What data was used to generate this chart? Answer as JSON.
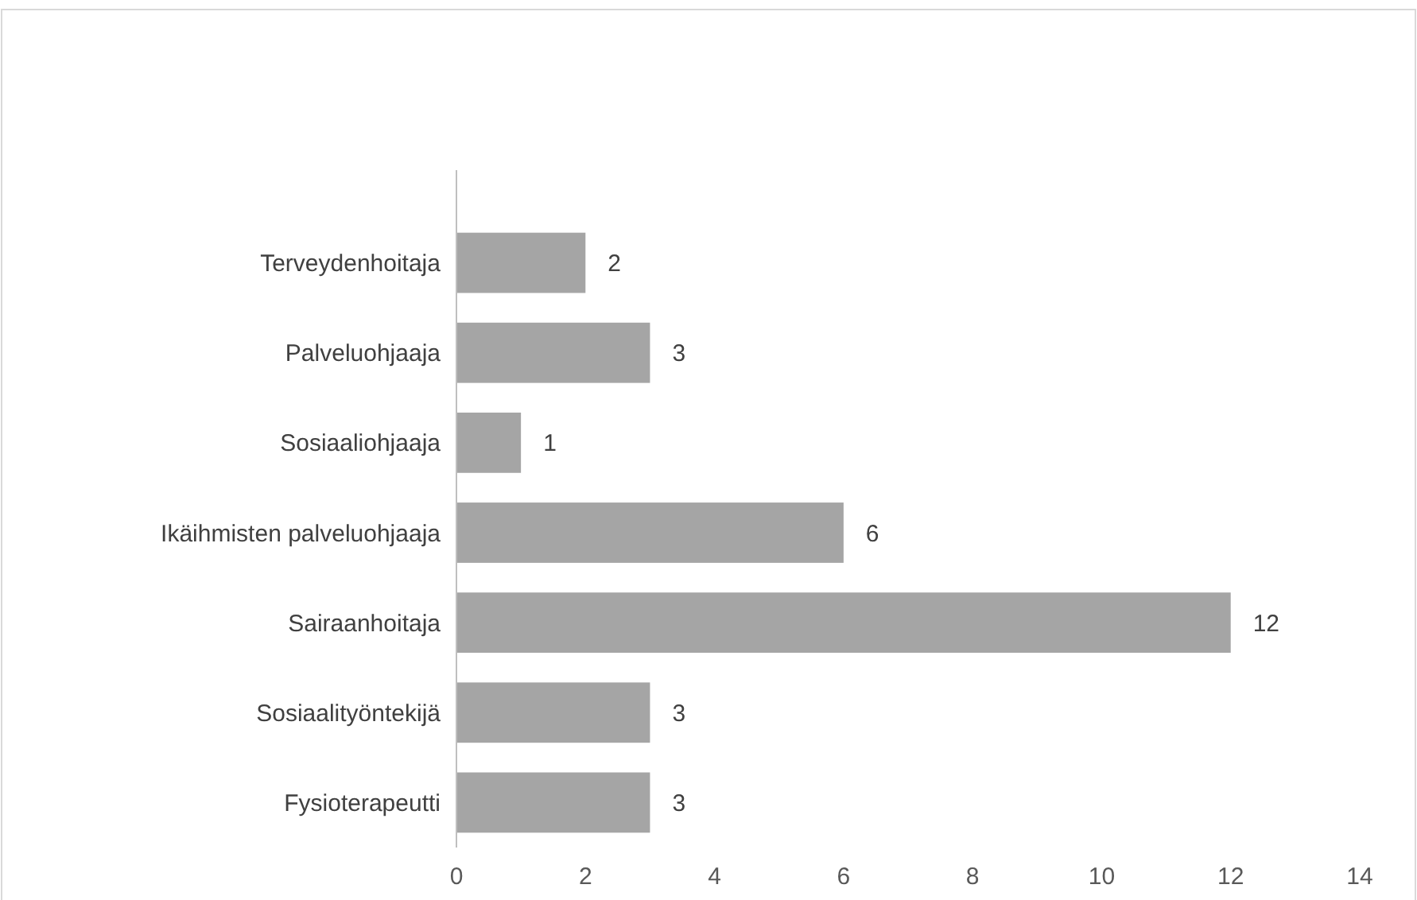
{
  "chart_data": {
    "type": "bar",
    "orientation": "horizontal",
    "categories": [
      "Terveydenhoitaja",
      "Palveluohjaaja",
      "Sosiaaliohjaaja",
      "Ikäihmisten palveluohjaaja",
      "Sairaanhoitaja",
      "Sosiaalityöntekijä",
      "Fysioterapeutti"
    ],
    "values": [
      2,
      3,
      1,
      6,
      12,
      3,
      3
    ],
    "color": "#a5a5a5",
    "xlim": [
      0,
      14
    ],
    "xticks": [
      0,
      2,
      4,
      6,
      8,
      10,
      12,
      14
    ],
    "grid": false,
    "data_labels": true
  }
}
